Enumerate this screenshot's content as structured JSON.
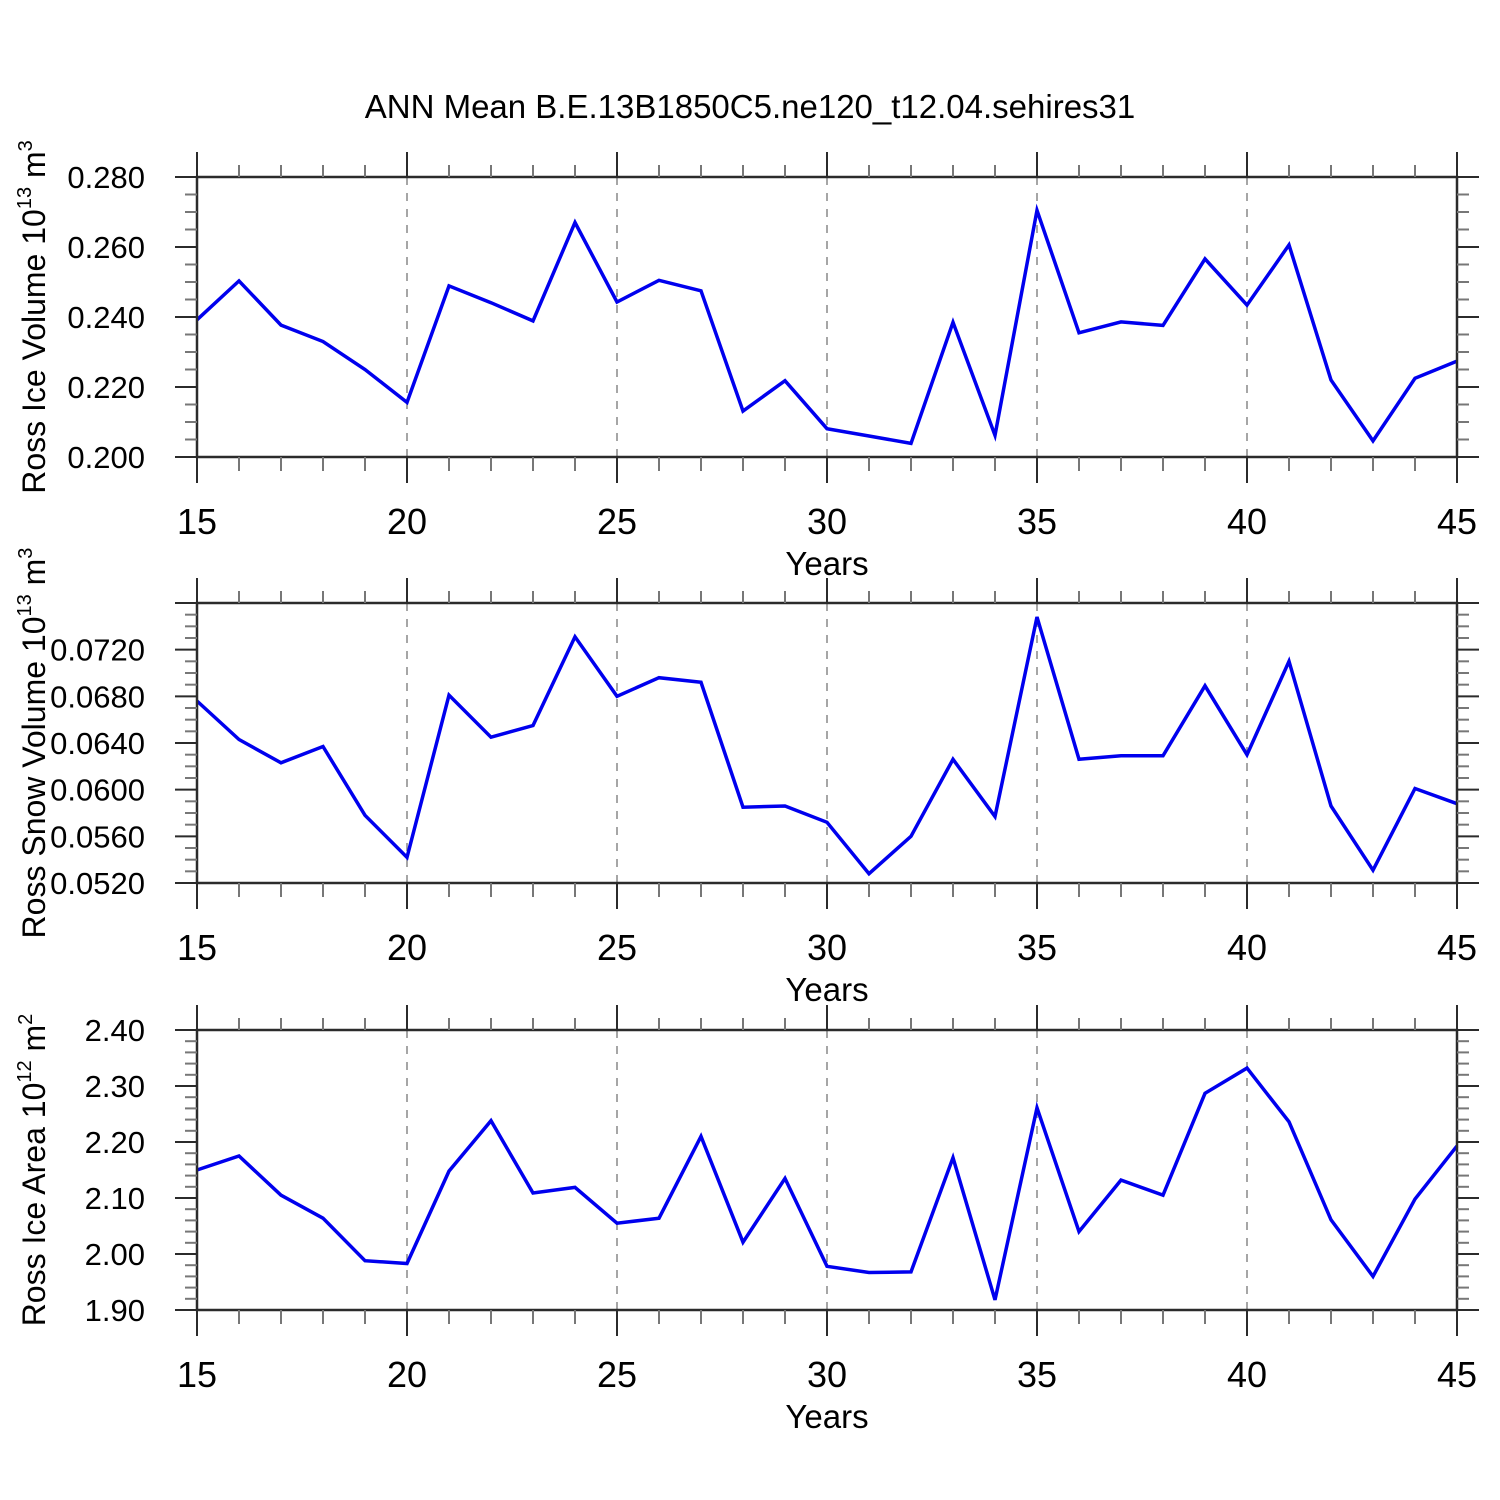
{
  "title": "ANN Mean B.E.13B1850C5.ne120_t12.04.sehires31",
  "colors": {
    "line": "#0000ee",
    "frame": "#2b2b2b",
    "major_tick": "#2b2b2b",
    "minor_tick": "#777777",
    "grid": "#909090",
    "text": "#000000"
  },
  "x": {
    "label": "Years",
    "min": 15,
    "max": 45,
    "major_ticks": [
      15,
      20,
      25,
      30,
      35,
      40,
      45
    ],
    "minor_step": 1,
    "grid_years": [
      20,
      25,
      30,
      35,
      40
    ]
  },
  "chart_data": [
    {
      "type": "line",
      "id": "ross-ice-volume",
      "ylabel_text": "Ross Ice Volume 10^13 m^3",
      "ylabel_parts": {
        "base1": "Ross Ice Volume 10",
        "sup1": "13",
        "base2": " m",
        "sup2": "3"
      },
      "xlabel": "Years",
      "ylim": [
        0.2,
        0.28
      ],
      "ytick_values": [
        0.2,
        0.22,
        0.24,
        0.26,
        0.28
      ],
      "ytick_labels": [
        "0.200",
        "0.220",
        "0.240",
        "0.260",
        "0.280"
      ],
      "y_major_unlabeled": [],
      "y_minor_step": 0.005,
      "x": [
        15,
        16,
        17,
        18,
        19,
        20,
        21,
        22,
        23,
        24,
        25,
        26,
        27,
        28,
        29,
        30,
        31,
        32,
        33,
        34,
        35,
        36,
        37,
        38,
        39,
        40,
        41,
        42,
        43,
        44,
        45
      ],
      "values": [
        0.2392,
        0.2503,
        0.2377,
        0.233,
        0.225,
        0.2156,
        0.2489,
        0.2441,
        0.2389,
        0.267,
        0.2443,
        0.2505,
        0.2475,
        0.2131,
        0.2218,
        0.2081,
        0.206,
        0.2039,
        0.2385,
        0.2062,
        0.2705,
        0.2355,
        0.2386,
        0.2376,
        0.2566,
        0.2434,
        0.2606,
        0.222,
        0.2046,
        0.2225,
        0.2274
      ]
    },
    {
      "type": "line",
      "id": "ross-snow-volume",
      "ylabel_text": "Ross Snow Volume 10^13 m^3",
      "ylabel_parts": {
        "base1": "Ross Snow Volume 10",
        "sup1": "13",
        "base2": " m",
        "sup2": "3"
      },
      "xlabel": "Years",
      "ylim": [
        0.052,
        0.076
      ],
      "ytick_values": [
        0.052,
        0.056,
        0.06,
        0.064,
        0.068,
        0.072
      ],
      "ytick_labels": [
        "0.0520",
        "0.0560",
        "0.0600",
        "0.0640",
        "0.0680",
        "0.0720"
      ],
      "y_major_unlabeled": [
        0.076
      ],
      "y_minor_step": 0.001,
      "x": [
        15,
        16,
        17,
        18,
        19,
        20,
        21,
        22,
        23,
        24,
        25,
        26,
        27,
        28,
        29,
        30,
        31,
        32,
        33,
        34,
        35,
        36,
        37,
        38,
        39,
        40,
        41,
        42,
        43,
        44,
        45
      ],
      "values": [
        0.0676,
        0.0643,
        0.0623,
        0.0637,
        0.0578,
        0.0542,
        0.0681,
        0.0645,
        0.0655,
        0.0731,
        0.068,
        0.0696,
        0.0692,
        0.0585,
        0.0586,
        0.0572,
        0.0528,
        0.056,
        0.0626,
        0.0577,
        0.0748,
        0.0626,
        0.0629,
        0.0629,
        0.0689,
        0.063,
        0.071,
        0.0586,
        0.0531,
        0.0601,
        0.0588
      ]
    },
    {
      "type": "line",
      "id": "ross-ice-area",
      "ylabel_text": "Ross Ice Area 10^12 m^2",
      "ylabel_parts": {
        "base1": "Ross Ice Area 10",
        "sup1": "12",
        "base2": " m",
        "sup2": "2"
      },
      "xlabel": "Years",
      "ylim": [
        1.9,
        2.4
      ],
      "ytick_values": [
        1.9,
        2.0,
        2.1,
        2.2,
        2.3,
        2.4
      ],
      "ytick_labels": [
        "1.90",
        "2.00",
        "2.10",
        "2.20",
        "2.30",
        "2.40"
      ],
      "y_major_unlabeled": [],
      "y_minor_step": 0.02,
      "x": [
        15,
        16,
        17,
        18,
        19,
        20,
        21,
        22,
        23,
        24,
        25,
        26,
        27,
        28,
        29,
        30,
        31,
        32,
        33,
        34,
        35,
        36,
        37,
        38,
        39,
        40,
        41,
        42,
        43,
        44,
        45
      ],
      "values": [
        2.15,
        2.175,
        2.105,
        2.064,
        1.988,
        1.983,
        2.148,
        2.238,
        2.109,
        2.119,
        2.055,
        2.064,
        2.21,
        2.021,
        2.135,
        1.978,
        1.967,
        1.968,
        2.172,
        1.918,
        2.261,
        2.04,
        2.132,
        2.105,
        2.287,
        2.332,
        2.236,
        2.061,
        1.96,
        2.098,
        2.193
      ]
    }
  ]
}
